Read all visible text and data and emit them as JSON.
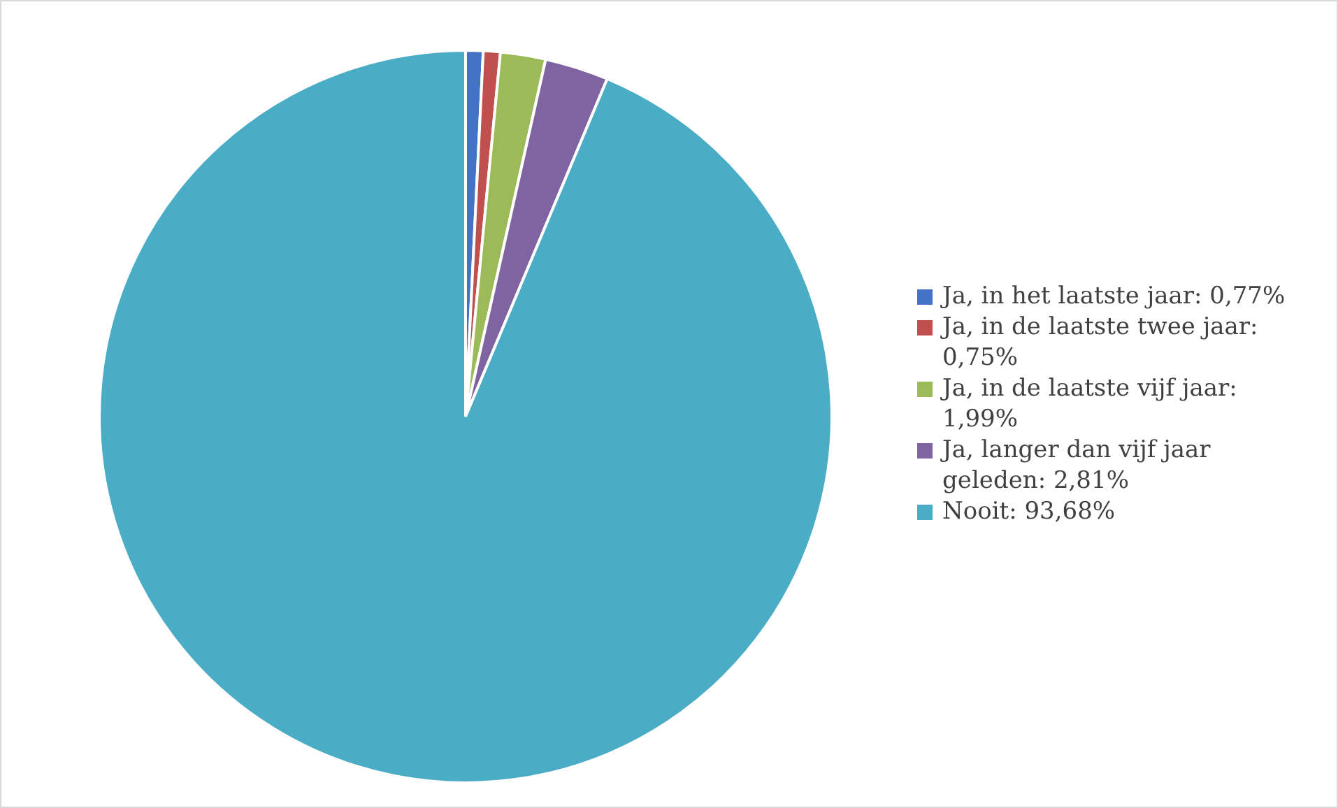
{
  "chart_data": {
    "type": "pie",
    "categories": [
      "Ja, in het laatste jaar: 0,77%",
      "Ja, in de laatste twee jaar: 0,75%",
      "Ja, in de laatste vijf jaar: 1,99%",
      "Ja, langer dan vijf jaar geleden: 2,81%",
      "Nooit: 93,68%"
    ],
    "values": [
      0.77,
      0.75,
      1.99,
      2.81,
      93.68
    ],
    "colors": [
      "#4472c4",
      "#c0504d",
      "#9bbb59",
      "#8064a2",
      "#4bacc6"
    ],
    "legend": "right"
  }
}
